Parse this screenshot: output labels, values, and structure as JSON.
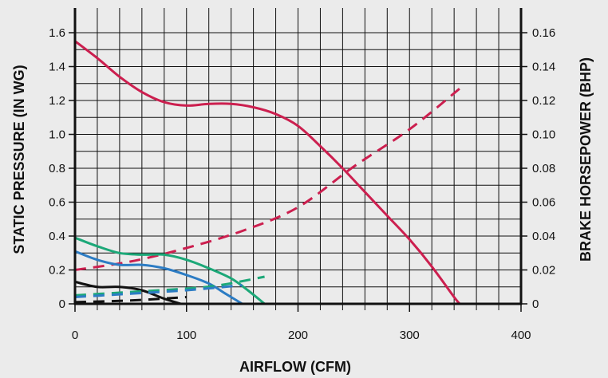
{
  "chart_data": {
    "type": "line",
    "title": "",
    "xlabel": "AIRFLOW (CFM)",
    "ylabel": "STATIC PRESSURE (IN WG)",
    "y2label": "BRAKE HORSEPOWER (BHP)",
    "xlim": [
      0,
      400
    ],
    "ylim": [
      0,
      1.6
    ],
    "y2lim": [
      0,
      0.16
    ],
    "x_ticks": [
      "0",
      "100",
      "200",
      "300",
      "400"
    ],
    "y_ticks": [
      "0",
      "0.2",
      "0.4",
      "0.6",
      "0.8",
      "1.0",
      "1.2",
      "1.4",
      "1.6"
    ],
    "y2_ticks": [
      "0",
      "0.02",
      "0.04",
      "0.06",
      "0.08",
      "0.10",
      "0.12",
      "0.14",
      "0.16"
    ],
    "grid": true,
    "legend": "none",
    "series": [
      {
        "color": "#cc1f4f",
        "style": "solid",
        "axis": "left",
        "points": [
          [
            0,
            1.55
          ],
          [
            20,
            1.45
          ],
          [
            40,
            1.34
          ],
          [
            60,
            1.25
          ],
          [
            80,
            1.19
          ],
          [
            100,
            1.17
          ],
          [
            120,
            1.18
          ],
          [
            140,
            1.18
          ],
          [
            160,
            1.16
          ],
          [
            180,
            1.12
          ],
          [
            200,
            1.05
          ],
          [
            220,
            0.93
          ],
          [
            240,
            0.8
          ],
          [
            260,
            0.66
          ],
          [
            280,
            0.52
          ],
          [
            300,
            0.38
          ],
          [
            320,
            0.22
          ],
          [
            340,
            0.04
          ],
          [
            345,
            0.0
          ]
        ]
      },
      {
        "color": "#cc1f4f",
        "style": "dashed",
        "axis": "right",
        "points": [
          [
            0,
            0.02
          ],
          [
            50,
            0.025
          ],
          [
            100,
            0.033
          ],
          [
            150,
            0.043
          ],
          [
            200,
            0.057
          ],
          [
            250,
            0.081
          ],
          [
            300,
            0.103
          ],
          [
            345,
            0.127
          ]
        ]
      },
      {
        "color": "#1ca878",
        "style": "solid",
        "axis": "left",
        "points": [
          [
            0,
            0.39
          ],
          [
            20,
            0.34
          ],
          [
            40,
            0.3
          ],
          [
            60,
            0.29
          ],
          [
            80,
            0.29
          ],
          [
            100,
            0.26
          ],
          [
            120,
            0.21
          ],
          [
            140,
            0.15
          ],
          [
            155,
            0.08
          ],
          [
            170,
            0.0
          ]
        ]
      },
      {
        "color": "#2c7cc4",
        "style": "solid",
        "axis": "left",
        "points": [
          [
            0,
            0.31
          ],
          [
            20,
            0.26
          ],
          [
            40,
            0.23
          ],
          [
            60,
            0.23
          ],
          [
            80,
            0.21
          ],
          [
            100,
            0.17
          ],
          [
            120,
            0.12
          ],
          [
            135,
            0.06
          ],
          [
            150,
            0.0
          ]
        ]
      },
      {
        "color": "#111111",
        "style": "solid",
        "axis": "left",
        "points": [
          [
            0,
            0.13
          ],
          [
            20,
            0.1
          ],
          [
            40,
            0.1
          ],
          [
            60,
            0.08
          ],
          [
            80,
            0.03
          ],
          [
            95,
            0.0
          ]
        ]
      },
      {
        "color": "#1ca878",
        "style": "dashed",
        "axis": "right",
        "points": [
          [
            0,
            0.005
          ],
          [
            50,
            0.007
          ],
          [
            100,
            0.009
          ],
          [
            130,
            0.011
          ],
          [
            170,
            0.016
          ]
        ]
      },
      {
        "color": "#2c7cc4",
        "style": "dashed",
        "axis": "right",
        "points": [
          [
            0,
            0.004
          ],
          [
            50,
            0.006
          ],
          [
            100,
            0.008
          ],
          [
            150,
            0.011
          ]
        ]
      },
      {
        "color": "#111111",
        "style": "dashed",
        "axis": "right",
        "points": [
          [
            0,
            0.001
          ],
          [
            50,
            0.002
          ],
          [
            100,
            0.004
          ]
        ]
      }
    ]
  }
}
